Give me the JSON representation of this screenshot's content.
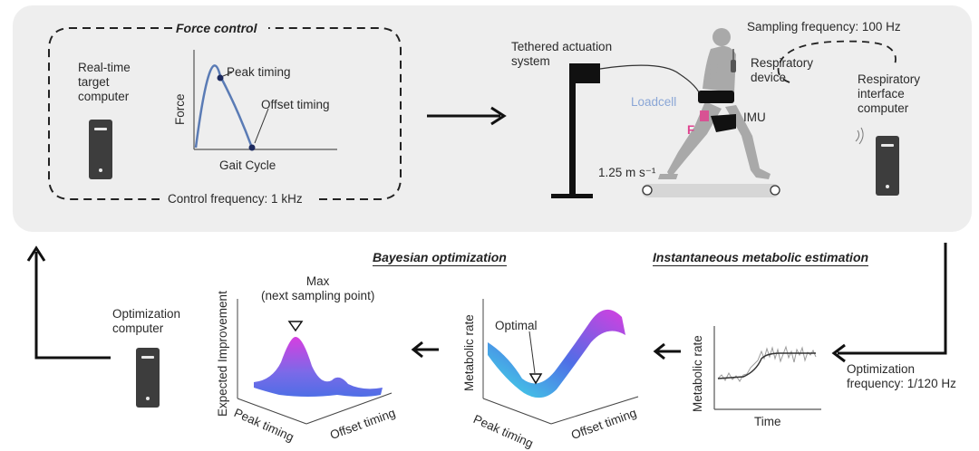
{
  "force_control": {
    "title": "Force control",
    "computer_label": "Real-time\ntarget\ncomputer",
    "y_axis": "Force",
    "x_axis": "Gait Cycle",
    "peak_label": "Peak timing",
    "offset_label": "Offset timing",
    "frequency": "Control frequency: 1 kHz"
  },
  "setup": {
    "tethered": "Tethered actuation\nsystem",
    "loadcell": "Loadcell",
    "force_symbol": "F",
    "imu": "IMU",
    "speed": "1.25 m s⁻¹",
    "sampling": "Sampling frequency: 100 Hz",
    "respiratory_device": "Respiratory\ndevice",
    "interface_computer": "Respiratory\ninterface\ncomputer"
  },
  "metabolic": {
    "title": "Instantaneous metabolic estimation",
    "y_axis": "Metabolic rate",
    "x_axis": "Time",
    "optimization_frequency": "Optimization\nfrequency: 1/120 Hz"
  },
  "bayesian": {
    "title": "Bayesian optimization",
    "surface1_y": "Metabolic rate",
    "surface1_x1": "Peak timing",
    "surface1_x2": "Offset timing",
    "optimal_label": "Optimal",
    "surface2_y": "Expected Improvement",
    "surface2_x1": "Peak timing",
    "surface2_x2": "Offset timing",
    "max_label": "Max\n(next sampling point)"
  },
  "optimization_computer": "Optimization\ncomputer",
  "colors": {
    "curve": "#5a7bb5",
    "loadcell": "#8aa6d6",
    "force_marker": "#e0438f",
    "computer": "#3d3d3d",
    "panel": "#eeeeee",
    "surface_cyan": "#3fe0e6",
    "surface_magenta": "#d63ee0",
    "surface_blue": "#4f6ee6"
  }
}
